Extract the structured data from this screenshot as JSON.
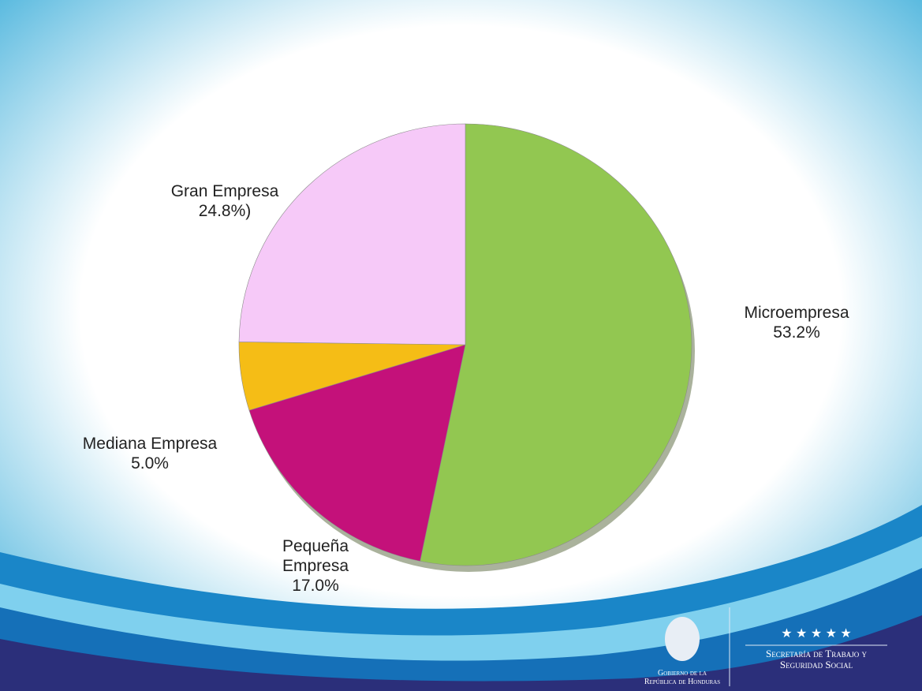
{
  "chart_data": {
    "type": "pie",
    "categories": [
      "Microempresa",
      "Pequeña Empresa",
      "Mediana Empresa",
      "Gran Empresa"
    ],
    "values": [
      53.2,
      17.0,
      5.0,
      24.8
    ],
    "value_labels": [
      "53.2%",
      "17.0%",
      "5.0%",
      "24.8%)"
    ],
    "colors": [
      "#92c751",
      "#c4117a",
      "#f5bd16",
      "#f6c9f8"
    ]
  },
  "footer": {
    "government": [
      "Gobierno de la",
      "República de Honduras"
    ],
    "ministry": [
      "Secretaría de Trabajo y",
      "Seguridad Social"
    ]
  }
}
